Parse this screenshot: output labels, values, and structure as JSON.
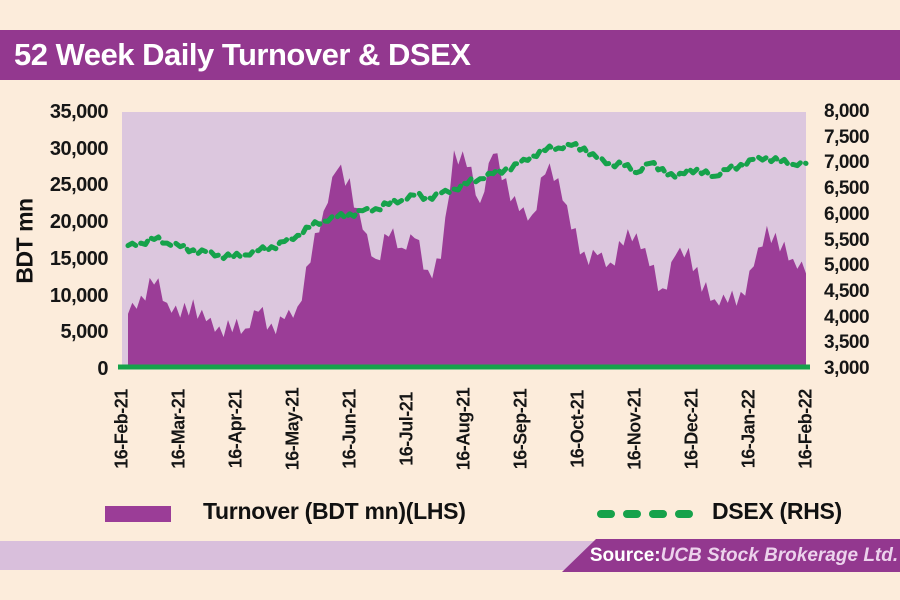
{
  "title": "52 Week Daily Turnover & DSEX",
  "colors": {
    "page_background": "#fcecdb",
    "title_bar": "#93388f",
    "title_text": "#ffffff",
    "plot_background": "#dcc7de",
    "turnover_area": "#9b3d97",
    "dsex_line": "#16a24b",
    "axis_text": "#161616",
    "bottom_strip": "#d9bfdc",
    "source_banner": "#93388f",
    "source_value_text": "#ecd2ec"
  },
  "chart_data": {
    "type": "area",
    "title": "52 Week Daily Turnover & DSEX",
    "grid": "off",
    "legend_position": "bottom",
    "left_axis": {
      "label": "BDT mn",
      "min": 0,
      "max": 35000,
      "tick_labels": [
        "35,000",
        "30,000",
        "25,000",
        "20,000",
        "15,000",
        "10,000",
        "5,000",
        "0"
      ]
    },
    "right_axis": {
      "min": 3000,
      "max": 8000,
      "tick_labels": [
        "8,000",
        "7,500",
        "7,000",
        "6,500",
        "6,000",
        "5,500",
        "5,000",
        "4,500",
        "4,000",
        "3,500",
        "3,000"
      ]
    },
    "x_tick_labels": [
      "16-Feb-21",
      "16-Mar-21",
      "16-Apr-21",
      "16-May-21",
      "16-Jun-21",
      "16-Jul-21",
      "16-Aug-21",
      "16-Sep-21",
      "16-Oct-21",
      "16-Nov-21",
      "16-Dec-21",
      "16-Jan-22",
      "16-Feb-22"
    ],
    "sampling_note": "weekly estimates read from daily 52-week series",
    "series": [
      {
        "name": "Turnover (BDT mn)(LHS)",
        "style": "area",
        "axis": "left",
        "color": "#9b3d97",
        "values": [
          7500,
          10000,
          11500,
          9000,
          7000,
          9500,
          6500,
          5800,
          5000,
          5500,
          7800,
          6200,
          6800,
          8500,
          14500,
          21500,
          27000,
          26000,
          19000,
          15000,
          18000,
          16500,
          17800,
          13500,
          15000,
          29800,
          27500,
          22600,
          29300,
          26000,
          21500,
          21000,
          26500,
          26000,
          19000,
          16000,
          15500,
          14500,
          16800,
          18500,
          14000,
          11000,
          15500,
          16500,
          10500,
          9500,
          9000,
          10500,
          14000,
          19500,
          16000,
          15000,
          13000
        ]
      },
      {
        "name": "DSEX (RHS)",
        "style": "dashed-line",
        "axis": "right",
        "color": "#16a24b",
        "values": [
          5400,
          5450,
          5520,
          5450,
          5380,
          5320,
          5280,
          5220,
          5160,
          5220,
          5300,
          5380,
          5480,
          5600,
          5750,
          5880,
          5950,
          6020,
          6080,
          6120,
          6200,
          6280,
          6380,
          6350,
          6420,
          6500,
          6600,
          6700,
          6800,
          6900,
          7000,
          7150,
          7250,
          7300,
          7350,
          7300,
          7100,
          7000,
          6950,
          6820,
          7000,
          6900,
          6720,
          6900,
          6800,
          6750,
          6880,
          6980,
          7080,
          7120,
          7020,
          6980,
          7000
        ]
      }
    ],
    "legend": [
      "Turnover (BDT mn)(LHS)",
      "DSEX (RHS)"
    ]
  },
  "source": {
    "label": "Source:",
    "value": " UCB Stock Brokerage Ltd."
  }
}
